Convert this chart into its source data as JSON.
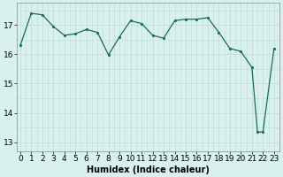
{
  "x_vals": [
    0,
    1,
    2,
    3,
    4,
    5,
    6,
    7,
    8,
    9,
    10,
    11,
    12,
    13,
    14,
    15,
    16,
    17,
    18,
    19,
    20,
    21,
    21.5,
    22,
    23
  ],
  "y_vals": [
    16.3,
    17.4,
    17.35,
    16.95,
    16.65,
    16.7,
    16.85,
    16.75,
    15.98,
    16.6,
    17.15,
    17.05,
    16.65,
    16.55,
    17.15,
    17.2,
    17.2,
    17.25,
    16.75,
    16.2,
    16.1,
    15.55,
    13.35,
    13.35,
    16.2
  ],
  "line_color": "#1a6b5a",
  "marker_color": "#1a6b5a",
  "bg_color": "#d8f0ee",
  "grid_color_major": "#c0dbd8",
  "grid_color_minor": "#e0f0ee",
  "xlabel": "Humidex (Indice chaleur)",
  "yticks": [
    13,
    14,
    15,
    16,
    17
  ],
  "xticks": [
    0,
    1,
    2,
    3,
    4,
    5,
    6,
    7,
    8,
    9,
    10,
    11,
    12,
    13,
    14,
    15,
    16,
    17,
    18,
    19,
    20,
    21,
    22,
    23
  ],
  "xlim": [
    -0.3,
    23.5
  ],
  "ylim": [
    12.7,
    17.75
  ],
  "xlabel_fontsize": 7,
  "tick_fontsize": 6.5,
  "linewidth": 0.9,
  "markersize": 2.5
}
